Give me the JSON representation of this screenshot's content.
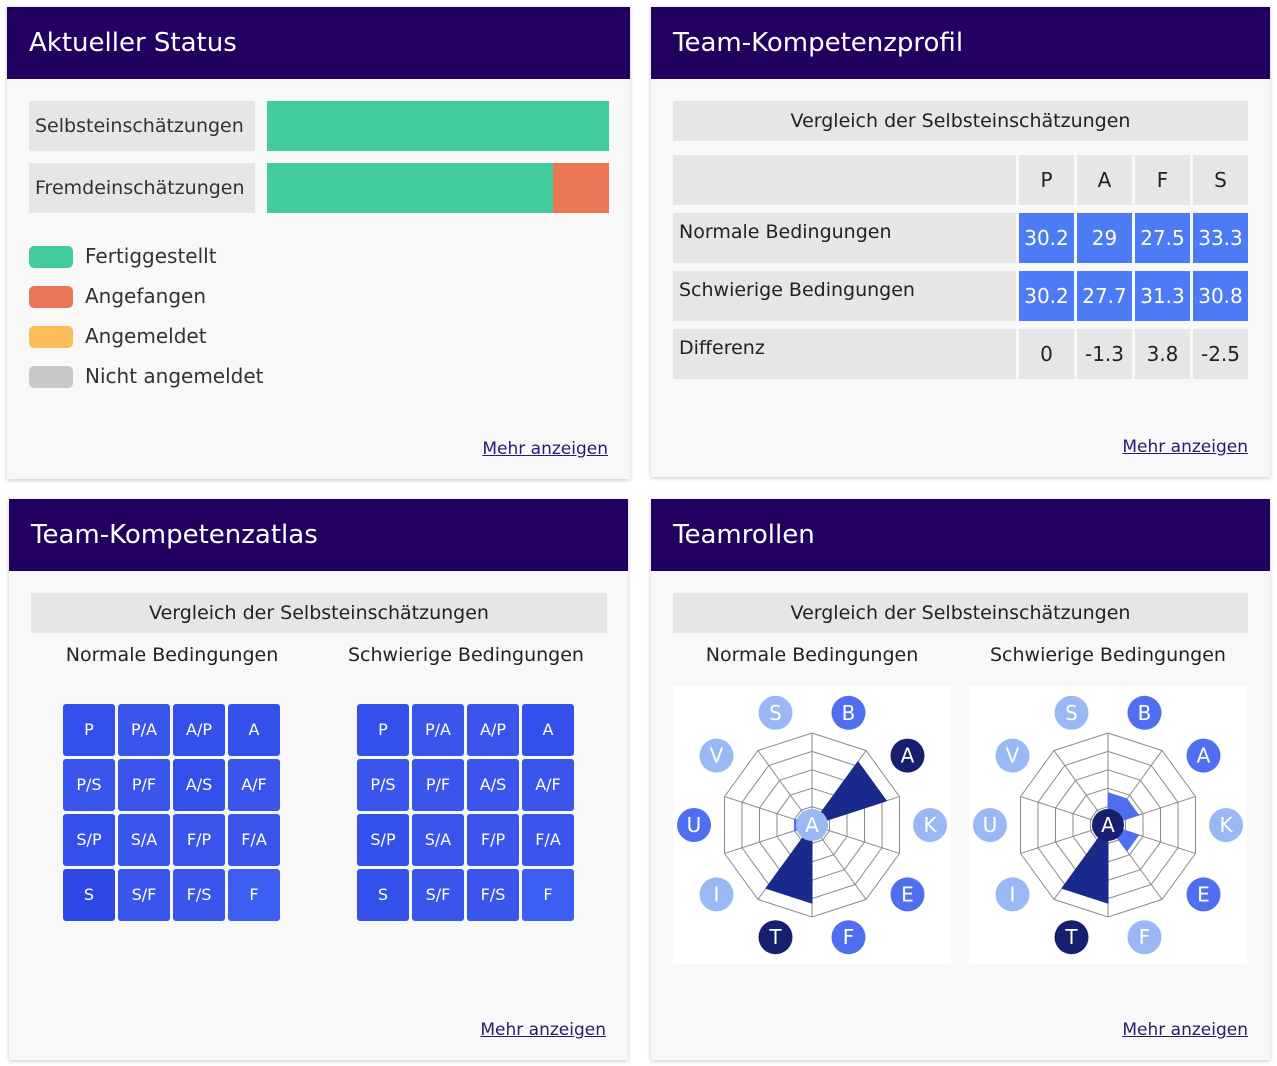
{
  "status": {
    "title": "Aktueller Status",
    "rows": [
      {
        "label": "Selbsteinschätzungen",
        "done": 1.0,
        "started": 0.0
      },
      {
        "label": "Fremdeinschätzungen",
        "done": 0.835,
        "started": 0.165
      }
    ],
    "legend": [
      {
        "label": "Fertiggestellt",
        "color": "#42cb9b"
      },
      {
        "label": "Angefangen",
        "color": "#e97756"
      },
      {
        "label": "Angemeldet",
        "color": "#fbbd5a"
      },
      {
        "label": "Nicht angemeldet",
        "color": "#c8c8c8"
      }
    ],
    "more": "Mehr anzeigen"
  },
  "profil": {
    "title": "Team-Kompetenzprofil",
    "subtitle": "Vergleich der Selbsteinschätzungen",
    "columns": [
      "P",
      "A",
      "F",
      "S"
    ],
    "rows": [
      {
        "label": "Normale Bedingungen",
        "values": [
          "30.2",
          "29",
          "27.5",
          "33.3"
        ]
      },
      {
        "label": "Schwierige Bedingungen",
        "values": [
          "30.2",
          "27.7",
          "31.3",
          "30.8"
        ]
      },
      {
        "label": "Differenz",
        "values": [
          "0",
          "-1.3",
          "3.8",
          "-2.5"
        ]
      }
    ],
    "more": "Mehr anzeigen"
  },
  "atlas": {
    "title": "Team-Kompetenzatlas",
    "subtitle": "Vergleich der Selbsteinschätzungen",
    "normal_label": "Normale Bedingungen",
    "hard_label": "Schwierige Bedingungen",
    "cells": [
      "P",
      "P/A",
      "A/P",
      "A",
      "P/S",
      "P/F",
      "A/S",
      "A/F",
      "S/P",
      "S/A",
      "F/P",
      "F/A",
      "S",
      "S/F",
      "F/S",
      "F"
    ],
    "normal_colors": [
      "#3350ea",
      "#3a55ec",
      "#3350ea",
      "#3350ea",
      "#3a55ec",
      "#3a55ec",
      "#3350ea",
      "#3a55ec",
      "#3350ea",
      "#3a55ec",
      "#3a55ec",
      "#3a55ec",
      "#2e48e6",
      "#3a55ec",
      "#3a55ec",
      "#3d5ef2"
    ],
    "hard_colors": [
      "#3350ea",
      "#3a55ec",
      "#3a55ec",
      "#3350ea",
      "#3a55ec",
      "#3a55ec",
      "#3a55ec",
      "#3a55ec",
      "#3350ea",
      "#3a55ec",
      "#3a55ec",
      "#3a55ec",
      "#3350ea",
      "#3a55ec",
      "#3a55ec",
      "#3d5ef2"
    ],
    "more": "Mehr anzeigen"
  },
  "rollen": {
    "title": "Teamrollen",
    "subtitle": "Vergleich der Selbsteinschätzungen",
    "normal_label": "Normale Bedingungen",
    "hard_label": "Schwierige Bedingungen",
    "center_label": "A",
    "roles": [
      "B",
      "A",
      "K",
      "E",
      "F",
      "T",
      "I",
      "U",
      "V",
      "S"
    ],
    "normal": {
      "values": [
        0.15,
        0.85,
        0.1,
        0.15,
        0.15,
        0.85,
        0.05,
        0.2,
        0.05,
        0.05
      ],
      "fills": [
        "#4f6ef0",
        "#1a2a8c",
        "#4f6ef0",
        "#4f6ef0",
        "#4f6ef0",
        "#1a2a8c",
        "#4f6ef0",
        "#4f6ef0",
        "#4f6ef0",
        "#4f6ef0"
      ],
      "badge_colors": [
        "#4f6ef0",
        "#16206e",
        "#9ab8f4",
        "#4f6ef0",
        "#4f6ef0",
        "#16206e",
        "#9ab8f4",
        "#4f6ef0",
        "#9ab8f4",
        "#9ab8f4"
      ]
    },
    "hard": {
      "values": [
        0.35,
        0.35,
        0.05,
        0.35,
        0.05,
        0.85,
        0.05,
        0.05,
        0.05,
        0.05
      ],
      "fills": [
        "#4f6ef0",
        "#4f6ef0",
        "#4f6ef0",
        "#4f6ef0",
        "#4f6ef0",
        "#1a2a8c",
        "#4f6ef0",
        "#4f6ef0",
        "#4f6ef0",
        "#4f6ef0"
      ],
      "badge_colors": [
        "#4f6ef0",
        "#4f6ef0",
        "#9ab8f4",
        "#4f6ef0",
        "#9ab8f4",
        "#16206e",
        "#9ab8f4",
        "#9ab8f4",
        "#9ab8f4",
        "#9ab8f4"
      ]
    },
    "more": "Mehr anzeigen"
  }
}
